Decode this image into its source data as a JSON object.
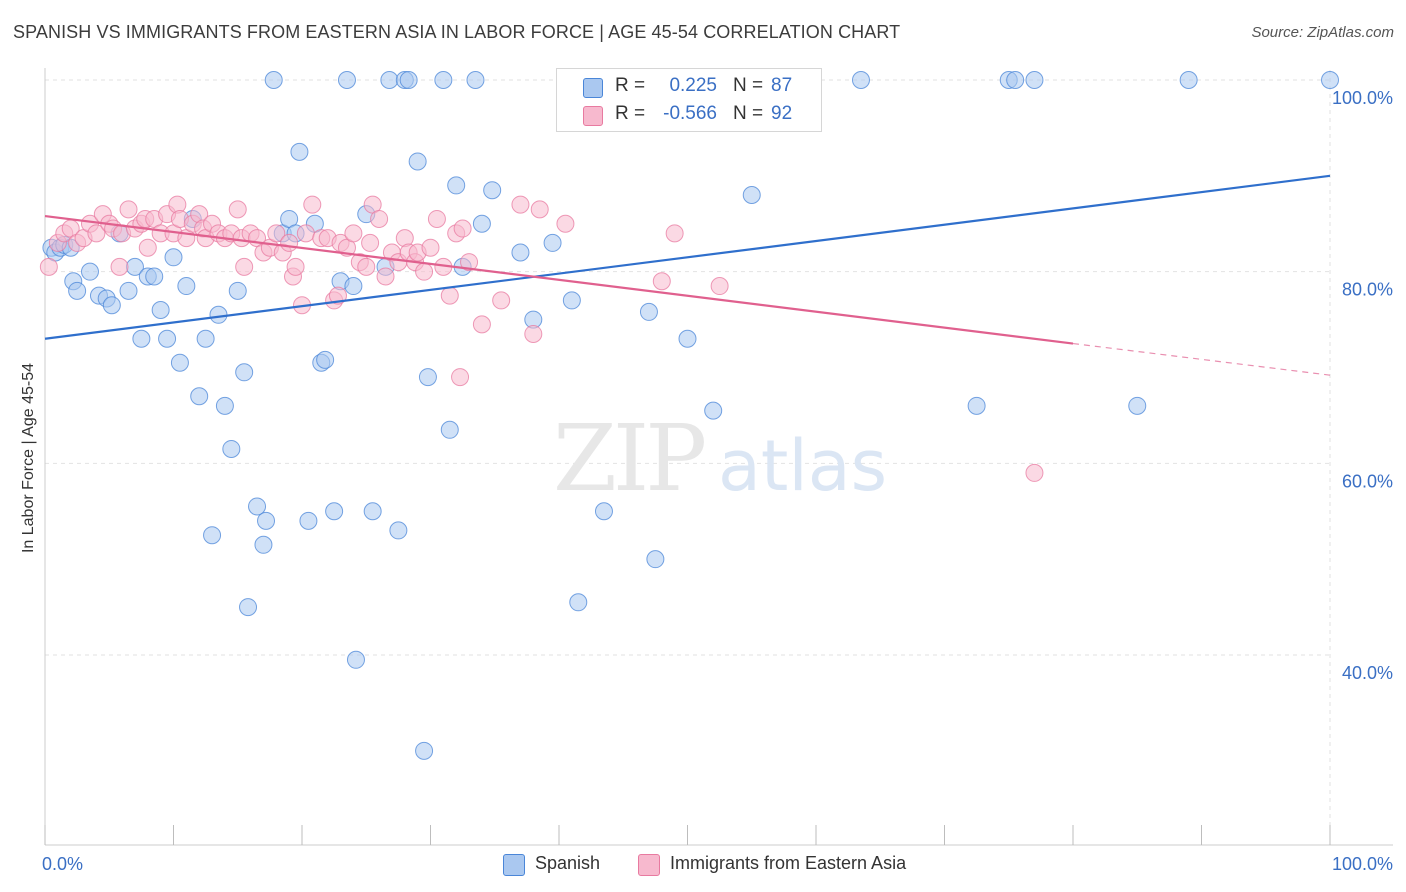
{
  "title": "SPANISH VS IMMIGRANTS FROM EASTERN ASIA IN LABOR FORCE | AGE 45-54 CORRELATION CHART",
  "source": "Source: ZipAtlas.com",
  "watermark": {
    "zip": "ZIP",
    "atlas": "atlas"
  },
  "legend_top": [
    {
      "r_label": "R =",
      "r_value": "0.225",
      "n_label": "N =",
      "n_value": "87",
      "color": "#aac8f0"
    },
    {
      "r_label": "R =",
      "r_value": "-0.566",
      "n_label": "N =",
      "n_value": "92",
      "color": "#f7b9ce"
    }
  ],
  "legend_bottom": [
    {
      "label": "Spanish",
      "color": "#aac8f0"
    },
    {
      "label": "Immigrants from Eastern Asia",
      "color": "#f7b9ce"
    }
  ],
  "chart_data": {
    "type": "scatter",
    "title": "SPANISH VS IMMIGRANTS FROM EASTERN ASIA IN LABOR FORCE | AGE 45-54 CORRELATION CHART",
    "xlabel": "",
    "ylabel": "In Labor Force | Age 45-54",
    "xlim": [
      0,
      100
    ],
    "ylim": [
      22,
      102
    ],
    "x_tick_labels": [
      {
        "value": 0,
        "label": "0.0%"
      },
      {
        "value": 100,
        "label": "100.0%"
      }
    ],
    "y_tick_labels": [
      {
        "value": 100,
        "label": "100.0%"
      },
      {
        "value": 80,
        "label": "80.0%"
      },
      {
        "value": 60,
        "label": "60.0%"
      },
      {
        "value": 40,
        "label": "40.0%"
      }
    ],
    "grid": true,
    "legend": "top-center",
    "series": [
      {
        "name": "Spanish",
        "color": "#4a86d8",
        "fill": "#aac8f0",
        "trend": {
          "x": [
            0,
            100
          ],
          "y": [
            73.0,
            90.0
          ],
          "color": "#2f6fcc"
        },
        "points": [
          [
            0.5,
            82.5
          ],
          [
            0.8,
            82
          ],
          [
            1.2,
            82.5
          ],
          [
            1.5,
            82.8
          ],
          [
            2.0,
            82.5
          ],
          [
            2.2,
            79
          ],
          [
            2.5,
            78
          ],
          [
            3.5,
            80
          ],
          [
            4.2,
            77.5
          ],
          [
            4.8,
            77.2
          ],
          [
            5.2,
            76.5
          ],
          [
            5.8,
            84
          ],
          [
            6.5,
            78
          ],
          [
            7.0,
            80.5
          ],
          [
            7.5,
            73
          ],
          [
            8.0,
            79.5
          ],
          [
            8.5,
            79.5
          ],
          [
            9.0,
            76
          ],
          [
            9.5,
            73
          ],
          [
            10.0,
            81.5
          ],
          [
            10.5,
            70.5
          ],
          [
            11.0,
            78.5
          ],
          [
            11.5,
            85.5
          ],
          [
            12.0,
            67
          ],
          [
            12.5,
            73
          ],
          [
            13.0,
            52.5
          ],
          [
            13.5,
            75.5
          ],
          [
            14.0,
            66
          ],
          [
            14.5,
            61.5
          ],
          [
            15.0,
            78
          ],
          [
            15.5,
            69.5
          ],
          [
            15.8,
            45
          ],
          [
            16.5,
            55.5
          ],
          [
            17.0,
            51.5
          ],
          [
            17.2,
            54
          ],
          [
            17.8,
            100
          ],
          [
            18.5,
            84
          ],
          [
            19.0,
            85.5
          ],
          [
            19.5,
            84
          ],
          [
            19.8,
            92.5
          ],
          [
            20.5,
            54
          ],
          [
            21.0,
            85
          ],
          [
            21.5,
            70.5
          ],
          [
            21.8,
            70.8
          ],
          [
            22.5,
            55
          ],
          [
            23.0,
            79
          ],
          [
            23.5,
            100
          ],
          [
            24.0,
            78.5
          ],
          [
            24.2,
            39.5
          ],
          [
            25.0,
            86
          ],
          [
            25.5,
            55
          ],
          [
            26.5,
            80.5
          ],
          [
            26.8,
            100
          ],
          [
            27.5,
            53
          ],
          [
            28.0,
            100
          ],
          [
            28.3,
            100
          ],
          [
            29.0,
            91.5
          ],
          [
            29.5,
            30
          ],
          [
            29.8,
            69
          ],
          [
            31.0,
            100
          ],
          [
            31.5,
            63.5
          ],
          [
            32.0,
            89
          ],
          [
            32.5,
            80.5
          ],
          [
            33.5,
            100
          ],
          [
            34.0,
            85
          ],
          [
            34.8,
            88.5
          ],
          [
            37.0,
            82
          ],
          [
            38.0,
            75
          ],
          [
            39.5,
            83
          ],
          [
            41.0,
            77
          ],
          [
            41.5,
            45.5
          ],
          [
            43.5,
            55
          ],
          [
            47.0,
            75.8
          ],
          [
            47.5,
            50
          ],
          [
            50.0,
            73
          ],
          [
            52.0,
            65.5
          ],
          [
            55.0,
            88
          ],
          [
            63.5,
            100
          ],
          [
            72.5,
            66
          ],
          [
            75.0,
            100
          ],
          [
            75.5,
            100
          ],
          [
            77.0,
            100
          ],
          [
            85.0,
            66
          ],
          [
            89.0,
            100
          ],
          [
            100.0,
            100
          ]
        ]
      },
      {
        "name": "Immigrants from Eastern Asia",
        "color": "#e87aa0",
        "fill": "#f7b9ce",
        "trend": {
          "x": [
            0,
            80
          ],
          "y": [
            85.8,
            72.5
          ],
          "color": "#e0608e",
          "dashed_to": {
            "x": 100,
            "y": 69.2
          }
        },
        "points": [
          [
            0.3,
            80.5
          ],
          [
            1.0,
            83
          ],
          [
            1.5,
            84
          ],
          [
            2.0,
            84.5
          ],
          [
            2.5,
            83
          ],
          [
            3.0,
            83.5
          ],
          [
            3.5,
            85
          ],
          [
            4.0,
            84
          ],
          [
            4.5,
            86
          ],
          [
            5.0,
            85
          ],
          [
            5.3,
            84.5
          ],
          [
            5.8,
            80.5
          ],
          [
            6.0,
            84
          ],
          [
            6.5,
            86.5
          ],
          [
            7.0,
            84.5
          ],
          [
            7.5,
            85
          ],
          [
            7.8,
            85.5
          ],
          [
            8.0,
            82.5
          ],
          [
            8.5,
            85.5
          ],
          [
            9.0,
            84
          ],
          [
            9.5,
            86
          ],
          [
            10.0,
            84
          ],
          [
            10.3,
            87
          ],
          [
            10.5,
            85.5
          ],
          [
            11.0,
            83.5
          ],
          [
            11.5,
            85
          ],
          [
            12.0,
            86
          ],
          [
            12.3,
            84.5
          ],
          [
            12.5,
            83.5
          ],
          [
            13.0,
            85
          ],
          [
            13.5,
            84
          ],
          [
            14.0,
            83.5
          ],
          [
            14.5,
            84
          ],
          [
            15.0,
            86.5
          ],
          [
            15.3,
            83.5
          ],
          [
            15.5,
            80.5
          ],
          [
            16.0,
            84
          ],
          [
            16.5,
            83.5
          ],
          [
            17.0,
            82
          ],
          [
            17.5,
            82.5
          ],
          [
            18.0,
            84
          ],
          [
            18.5,
            82
          ],
          [
            19.0,
            83
          ],
          [
            19.3,
            79.5
          ],
          [
            19.5,
            80.5
          ],
          [
            20.0,
            76.5
          ],
          [
            20.3,
            84
          ],
          [
            20.8,
            87
          ],
          [
            21.5,
            83.5
          ],
          [
            22.0,
            83.5
          ],
          [
            22.5,
            77
          ],
          [
            22.8,
            77.5
          ],
          [
            23.0,
            83
          ],
          [
            23.5,
            82.5
          ],
          [
            24.0,
            84
          ],
          [
            24.5,
            81
          ],
          [
            25.0,
            80.5
          ],
          [
            25.3,
            83
          ],
          [
            25.5,
            87
          ],
          [
            26.0,
            85.5
          ],
          [
            26.5,
            79.5
          ],
          [
            27.0,
            82
          ],
          [
            27.5,
            81
          ],
          [
            28.0,
            83.5
          ],
          [
            28.3,
            82
          ],
          [
            28.8,
            81
          ],
          [
            29.0,
            82
          ],
          [
            29.5,
            80
          ],
          [
            30.0,
            82.5
          ],
          [
            30.5,
            85.5
          ],
          [
            31.0,
            80.5
          ],
          [
            31.5,
            77.5
          ],
          [
            32.0,
            84
          ],
          [
            32.3,
            69
          ],
          [
            32.5,
            84.5
          ],
          [
            33.0,
            81
          ],
          [
            34.0,
            74.5
          ],
          [
            35.5,
            77
          ],
          [
            37.0,
            87
          ],
          [
            38.0,
            73.5
          ],
          [
            38.5,
            86.5
          ],
          [
            40.5,
            85
          ],
          [
            48.0,
            79
          ],
          [
            49.0,
            84
          ],
          [
            52.5,
            78.5
          ],
          [
            77.0,
            59
          ]
        ]
      }
    ]
  }
}
